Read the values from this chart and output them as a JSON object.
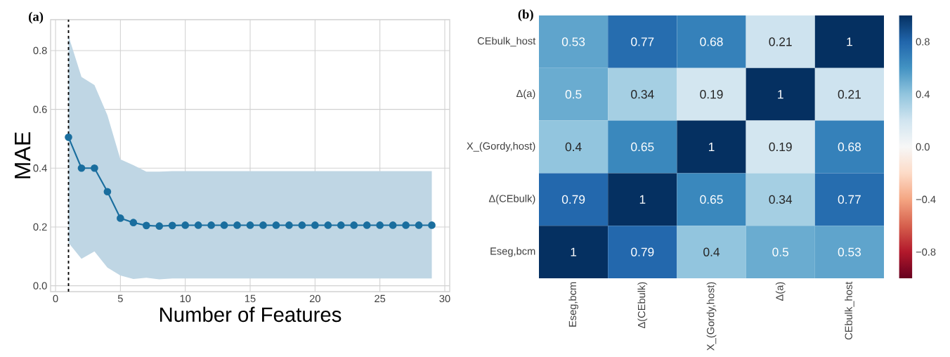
{
  "chart_data": [
    {
      "type": "line",
      "title": "(a)",
      "xlabel": "Number of Features",
      "ylabel": "MAE",
      "x": [
        1,
        2,
        3,
        4,
        5,
        6,
        7,
        8,
        9,
        10,
        11,
        12,
        13,
        14,
        15,
        16,
        17,
        18,
        19,
        20,
        21,
        22,
        23,
        24,
        25,
        26,
        27,
        28,
        29
      ],
      "series": [
        {
          "color": "#1a6e9e",
          "values": [
            0.505,
            0.4,
            0.4,
            0.32,
            0.23,
            0.215,
            0.205,
            0.203,
            0.205,
            0.206,
            0.206,
            0.206,
            0.206,
            0.206,
            0.206,
            0.206,
            0.206,
            0.206,
            0.206,
            0.206,
            0.206,
            0.206,
            0.206,
            0.206,
            0.206,
            0.206,
            0.206,
            0.206,
            0.206
          ],
          "upper": [
            0.85,
            0.71,
            0.683,
            0.58,
            0.43,
            0.41,
            0.388,
            0.388,
            0.39,
            0.39,
            0.39,
            0.39,
            0.39,
            0.39,
            0.39,
            0.39,
            0.39,
            0.39,
            0.39,
            0.39,
            0.39,
            0.39,
            0.39,
            0.39,
            0.39,
            0.39,
            0.39,
            0.39,
            0.39
          ],
          "lower": [
            0.146,
            0.092,
            0.117,
            0.062,
            0.035,
            0.023,
            0.027,
            0.022,
            0.025,
            0.025,
            0.025,
            0.025,
            0.025,
            0.025,
            0.025,
            0.025,
            0.025,
            0.025,
            0.025,
            0.025,
            0.025,
            0.025,
            0.025,
            0.025,
            0.025,
            0.025,
            0.025,
            0.025,
            0.025
          ]
        }
      ],
      "xlim": [
        -0.38,
        30.38
      ],
      "ylim": [
        -0.02,
        0.905
      ],
      "xticks": [
        0,
        5,
        10,
        15,
        20,
        25,
        30
      ],
      "yticks": [
        {
          "value": 0,
          "label": "0.0"
        },
        0.2,
        0.4,
        0.6,
        0.8
      ],
      "ref_lines": [
        {
          "axis": "x",
          "value": 1,
          "color": "#000000",
          "line_style": "dashed"
        }
      ],
      "grid": true,
      "marker": "circle",
      "line_style": "solid"
    },
    {
      "type": "heatmap",
      "title": "(b)",
      "categories": [
        "Eseg,bcm",
        "Δ(CEbulk)",
        "X_(Gordy,host)",
        "Δ(a)",
        "CEbulk_host"
      ],
      "y_categories": [
        "CEbulk_host",
        "Δ(a)",
        "X_(Gordy,host)",
        "Δ(CEbulk)",
        "Eseg,bcm"
      ],
      "cells": [
        [
          0.53,
          0.77,
          0.68,
          0.21,
          1
        ],
        [
          0.5,
          0.34,
          0.19,
          1,
          0.21
        ],
        [
          0.4,
          0.65,
          1,
          0.19,
          0.68
        ],
        [
          0.79,
          1,
          0.65,
          0.34,
          0.77
        ],
        [
          1,
          0.79,
          0.4,
          0.5,
          0.53
        ]
      ],
      "data_labels": true,
      "clim": [
        -1,
        1
      ],
      "cticks": [
        {
          "value": -0.8,
          "label": "−0.8"
        },
        {
          "value": -0.4,
          "label": "−0.4"
        },
        {
          "value": 0,
          "label": "0.0"
        },
        0.4,
        0.8
      ]
    }
  ]
}
